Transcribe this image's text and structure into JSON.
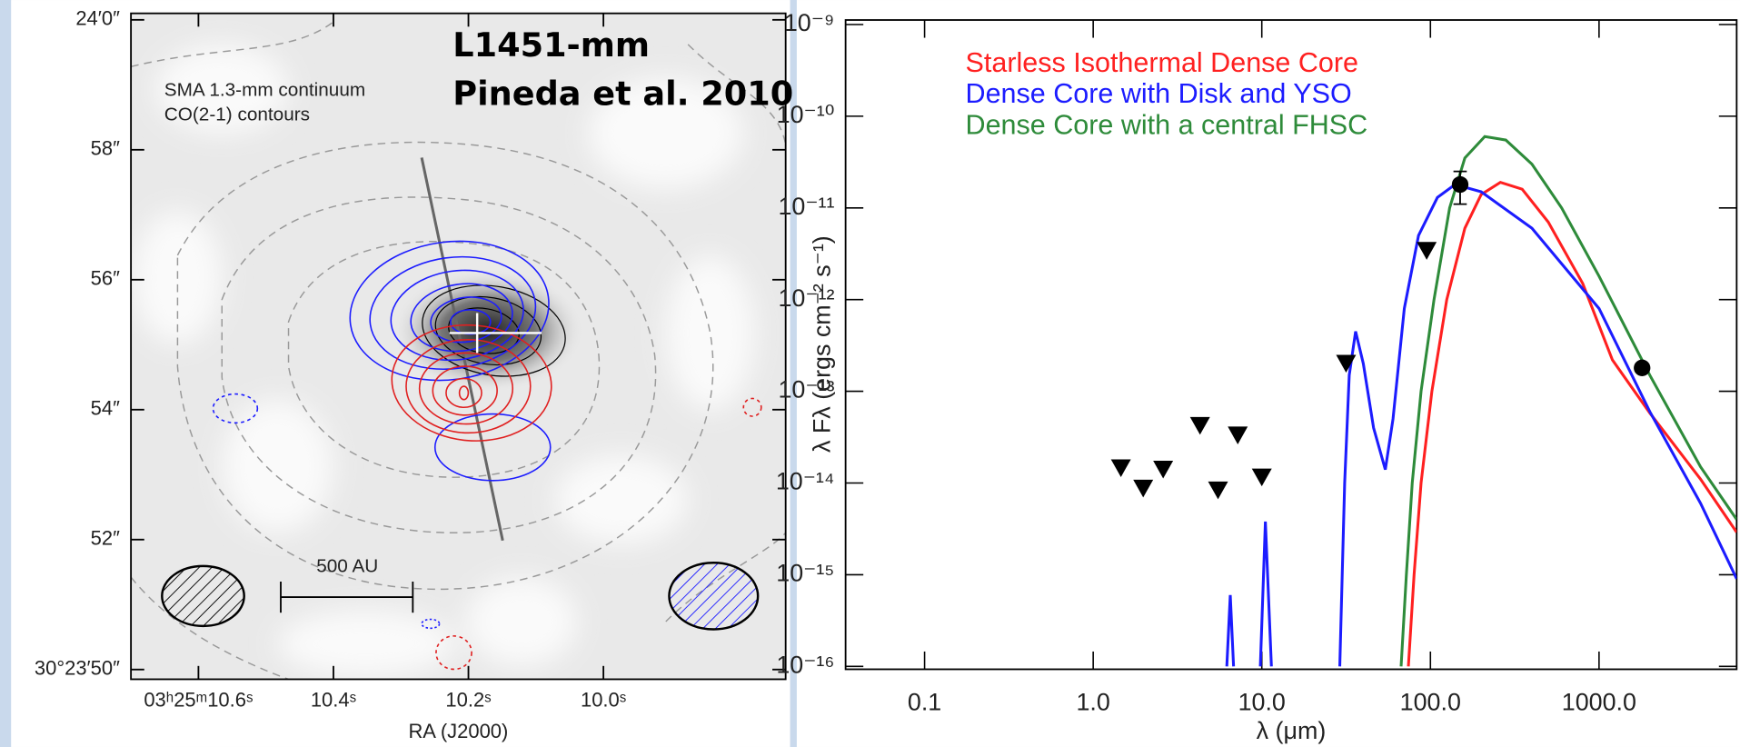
{
  "chart_data": [
    {
      "type": "image",
      "title": "L1451-mm",
      "subtitle": "Pineda et al. 2010",
      "annotations": [
        "SMA 1.3-mm continuum",
        "CO(2-1) contours",
        "500 AU"
      ],
      "xlabel": "RA (J2000)",
      "xlim": [
        10.7,
        9.73
      ],
      "ylim": [
        49.85,
        60.1
      ],
      "xticks": [
        {
          "value": 10.6,
          "label": "03ʰ25ᵐ10.6ˢ"
        },
        {
          "value": 10.4,
          "label": "10.4ˢ"
        },
        {
          "value": 10.2,
          "label": "10.2ˢ"
        },
        {
          "value": 10.0,
          "label": "10.0ˢ"
        }
      ],
      "yticks": [
        {
          "value": 50,
          "label": "30°23′50″"
        },
        {
          "value": 52,
          "label": "52″"
        },
        {
          "value": 54,
          "label": "54″"
        },
        {
          "value": 56,
          "label": "56″"
        },
        {
          "value": 58,
          "label": "58″"
        },
        {
          "value": 60,
          "label": "24′0″"
        }
      ]
    },
    {
      "type": "line",
      "xlabel": "λ (μm)",
      "ylabel": "λ Fλ (ergs cm⁻² s⁻¹)",
      "xscale": "log",
      "yscale": "log",
      "xlim": [
        0.034,
        6550
      ],
      "ylim": [
        9.3e-17,
        1.12e-09
      ],
      "xticks": [
        0.1,
        {
          "value": 1,
          "label": "1.0"
        },
        {
          "value": 10,
          "label": "10.0"
        },
        {
          "value": 100,
          "label": "100.0"
        },
        {
          "value": 1000,
          "label": "1000.0"
        }
      ],
      "yticks": [
        {
          "value": 1e-16,
          "label": "10⁻¹⁶"
        },
        {
          "value": 1e-15,
          "label": "10⁻¹⁵"
        },
        {
          "value": 1e-14,
          "label": "10⁻¹⁴"
        },
        {
          "value": 1e-13,
          "label": "10⁻¹³"
        },
        {
          "value": 1e-12,
          "label": "10⁻¹²"
        },
        {
          "value": 1e-11,
          "label": "10⁻¹¹"
        },
        {
          "value": 1e-10,
          "label": "10⁻¹⁰"
        },
        {
          "value": 1e-09,
          "label": "10⁻⁹"
        }
      ],
      "legend": "upper left",
      "series": [
        {
          "name": "Starless Isothermal Dense Core",
          "color": "#ff2020",
          "x": [
            74,
            80,
            88,
            102,
            125,
            160,
            200,
            260,
            350,
            500,
            800,
            1200,
            2000,
            4000,
            6550
          ],
          "values": [
            1e-16,
            1e-15,
            1e-14,
            1e-13,
            1e-12,
            6e-12,
            1.4e-11,
            1.9e-11,
            1.6e-11,
            7e-12,
            1.5e-12,
            2.2e-13,
            5.8e-14,
            1.1e-14,
            2.9e-15
          ]
        },
        {
          "name": "Dense Core with Disk and YSO",
          "color": "#1c1cff",
          "x": [
            6.2,
            6.5,
            6.8,
            8,
            9.8,
            10.5,
            11.4,
            20,
            29,
            31,
            33,
            36,
            40,
            46,
            54,
            60,
            70,
            85,
            110,
            140,
            200,
            400,
            1000,
            2000,
            4000,
            6550
          ],
          "values": [
            1e-16,
            6e-16,
            1e-16,
            null,
            1e-16,
            3.8e-15,
            1e-16,
            null,
            1e-16,
            1e-14,
            1.5e-13,
            4.5e-13,
            2e-13,
            4e-14,
            1.4e-14,
            5e-14,
            8e-13,
            5e-12,
            1.3e-11,
            1.8e-11,
            1.5e-11,
            6e-12,
            8e-13,
            6e-14,
            6e-15,
            9e-16
          ]
        },
        {
          "name": "Dense Core with a central FHSC",
          "color": "#2e8b3a",
          "x": [
            67,
            72,
            78,
            88,
            105,
            130,
            160,
            210,
            280,
            400,
            600,
            1000,
            2000,
            4000,
            6550
          ],
          "values": [
            1e-16,
            1e-15,
            1e-14,
            1e-13,
            1e-12,
            1e-11,
            3.5e-11,
            6e-11,
            5.5e-11,
            3e-11,
            1e-11,
            1.8e-12,
            1.5e-13,
            1.5e-14,
            4e-15
          ]
        },
        {
          "marker": "circle",
          "color": "#000000",
          "x": [
            150,
            1800
          ],
          "values": [
            1.8e-11,
            1.8e-13
          ],
          "yerr": [
            7e-12,
            null
          ]
        },
        {
          "marker": "triangle",
          "color": "#000000",
          "x": [
            1.46,
            1.98,
            2.6,
            4.3,
            5.5,
            7.2,
            10,
            31.6,
            95
          ],
          "values": [
            1.45e-14,
            8.7e-15,
            1.4e-14,
            4.2e-14,
            8.3e-15,
            3.3e-14,
            1.15e-14,
            2e-13,
            3.4e-12
          ]
        }
      ]
    }
  ]
}
